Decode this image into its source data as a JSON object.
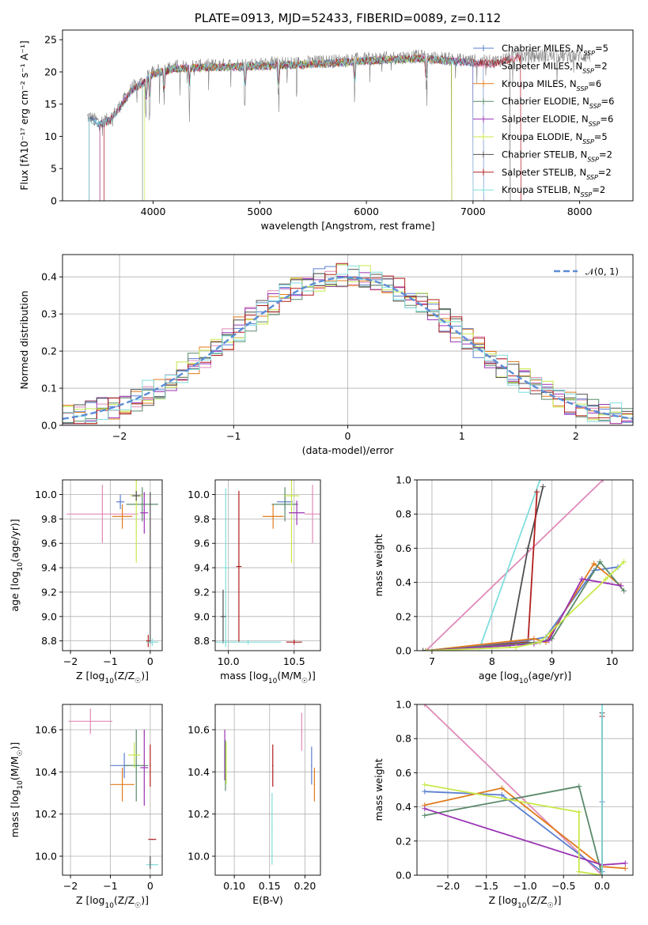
{
  "chart_data": [
    {
      "type": "line",
      "title": "PLATE=0913, MJD=52433, FIBERID=0089, z=0.112",
      "xlabel": "wavelength [Angstrom, rest frame]",
      "ylabel": "Flux [fλ10⁻¹⁷ erg cm⁻² s⁻¹ A⁻¹]",
      "xlim": [
        3150,
        8500
      ],
      "ylim": [
        0,
        26.5
      ],
      "xticks": [
        4000,
        5000,
        6000,
        7000,
        8000
      ],
      "yticks": [
        0,
        5,
        10,
        15,
        20,
        25
      ],
      "xtick_labels": [
        "4000",
        "5000",
        "6000",
        "7000",
        "8000"
      ],
      "ytick_labels": [
        "0",
        "5",
        "10",
        "15",
        "20",
        "25"
      ],
      "legend_position": "right",
      "grid": false,
      "series_name_parts": [
        [
          "Chabrier MILES, N",
          "SSP",
          "=5"
        ],
        [
          "Salpeter MILES, N",
          "SSP",
          "=2"
        ],
        [
          "Kroupa MILES, N",
          "SSP",
          "=6"
        ],
        [
          "Chabrier ELODIE, N",
          "SSP",
          "=6"
        ],
        [
          "Salpeter ELODIE, N",
          "SSP",
          "=6"
        ],
        [
          "Kroupa ELODIE, N",
          "SSP",
          "=5"
        ],
        [
          "Chabrier STELIB, N",
          "SSP",
          "=2"
        ],
        [
          "Salpeter STELIB, N",
          "SSP",
          "=2"
        ],
        [
          "Kroupa STELIB, N",
          "SSP",
          "=2"
        ]
      ],
      "series_colors": [
        "#5a7fd0",
        "#e08ab8",
        "#e07a1a",
        "#5a8a6a",
        "#9a33b5",
        "#c8e84a",
        "#505050",
        "#b21e1e",
        "#7fdede"
      ],
      "continuum_knots": [
        [
          3400,
          13
        ],
        [
          3500,
          12.2
        ],
        [
          3600,
          12.8
        ],
        [
          3700,
          15
        ],
        [
          3800,
          17.5
        ],
        [
          3900,
          18.5
        ],
        [
          4000,
          20
        ],
        [
          4200,
          20.8
        ],
        [
          4500,
          21
        ],
        [
          5000,
          21.2
        ],
        [
          5500,
          21.5
        ],
        [
          6000,
          22
        ],
        [
          6500,
          22.4
        ],
        [
          7000,
          21.7
        ],
        [
          7200,
          21.6
        ],
        [
          7400,
          22.5
        ]
      ],
      "data_spectrum_range": [
        3380,
        8100
      ]
    },
    {
      "type": "bar",
      "xlabel": "(data-model)/error",
      "ylabel": "Normed distribution",
      "xlim": [
        -2.5,
        2.5
      ],
      "ylim": [
        0,
        0.46
      ],
      "xticks": [
        -2,
        -1,
        0,
        1,
        2
      ],
      "yticks": [
        0.0,
        0.1,
        0.2,
        0.3,
        0.4
      ],
      "xtick_labels": [
        "−2",
        "−1",
        "0",
        "1",
        "2"
      ],
      "ytick_labels": [
        "0.0",
        "0.1",
        "0.2",
        "0.3",
        "0.4"
      ],
      "grid": true,
      "legend_position": "top-right",
      "bin_width": 0.1,
      "reference_curve_label": "𝒩(0, 1)",
      "reference_curve": "gaussian mean 0 sigma 1",
      "reference_color": "#5b8dd6",
      "series_colors": [
        "#5a7fd0",
        "#e08ab8",
        "#e07a1a",
        "#5a8a6a",
        "#9a33b5",
        "#c8e84a",
        "#505050",
        "#b21e1e",
        "#7fdede"
      ]
    },
    {
      "type": "scatter",
      "xlabel_parts": [
        "Z [log",
        "10",
        "(Z/Z",
        "☉",
        ")]"
      ],
      "ylabel_parts": [
        "age  [log",
        "10",
        "(age/yr)]"
      ],
      "xlim": [
        -2.2,
        0.3
      ],
      "ylim": [
        8.72,
        10.12
      ],
      "xticks": [
        -2,
        -1,
        0
      ],
      "yticks": [
        8.8,
        9.0,
        9.2,
        9.4,
        9.6,
        9.8,
        10.0
      ],
      "xtick_labels": [
        "−2",
        "−1",
        "0"
      ],
      "ytick_labels": [
        "8.8",
        "9.0",
        "9.2",
        "9.4",
        "9.6",
        "9.8",
        "10.0"
      ],
      "grid": true,
      "points": [
        {
          "color": "#e08ab8",
          "x": -1.2,
          "xerr": 0.9,
          "y": 9.84,
          "yerr": 0.24
        },
        {
          "color": "#5a7fd0",
          "x": -0.75,
          "xerr": 0.1,
          "y": 9.94,
          "yerr": 0.06
        },
        {
          "color": "#e07a1a",
          "x": -0.7,
          "xerr": 0.25,
          "y": 9.82,
          "yerr": 0.1
        },
        {
          "color": "#5a8a6a",
          "x": -0.2,
          "xerr": 0.4,
          "y": 9.92,
          "yerr": 0.14
        },
        {
          "color": "#c8e84a",
          "x": -0.35,
          "xerr": 0.15,
          "y": 9.99,
          "yerr": 0.55
        },
        {
          "color": "#505050",
          "x": -0.35,
          "xerr": 0.1,
          "y": 9.99,
          "yerr": 0.04
        },
        {
          "color": "#9a33b5",
          "x": -0.15,
          "xerr": 0.1,
          "y": 9.85,
          "yerr": 0.17
        },
        {
          "color": "#b21e1e",
          "x": -0.05,
          "xerr": 0.05,
          "y": 8.8,
          "yerr": 0.05
        },
        {
          "color": "#505050",
          "x": 0.0,
          "xerr": 0.02,
          "y": 9.4,
          "yerr": 0.62
        },
        {
          "color": "#7fdede",
          "x": 0.05,
          "xerr": 0.15,
          "y": 8.79,
          "yerr": 0.03
        }
      ]
    },
    {
      "type": "scatter",
      "xlabel_parts": [
        "mass [log",
        "10",
        "(M/M",
        "☉",
        ")]"
      ],
      "xlim": [
        9.9,
        10.7
      ],
      "ylim": [
        8.72,
        10.12
      ],
      "xticks": [
        10.0,
        10.5
      ],
      "yticks": [
        8.8,
        9.0,
        9.2,
        9.4,
        9.6,
        9.8,
        10.0
      ],
      "xtick_labels": [
        "10.0",
        "10.5"
      ],
      "ytick_labels": [
        "8.8",
        "9.0",
        "9.2",
        "9.4",
        "9.6",
        "9.8",
        "10.0"
      ],
      "grid": true,
      "points": [
        {
          "color": "#7fdede",
          "x": 9.98,
          "xerr": 0.02,
          "y": 9.4,
          "yerr": 0.65
        },
        {
          "color": "#505050",
          "x": 9.96,
          "xerr": 0.02,
          "y": 9.0,
          "yerr": 0.22
        },
        {
          "color": "#b21e1e",
          "x": 10.08,
          "xerr": 0.02,
          "y": 9.41,
          "yerr": 0.62
        },
        {
          "color": "#7fdede",
          "x": 10.15,
          "xerr": 0.25,
          "y": 8.79,
          "yerr": 0.02
        },
        {
          "color": "#b21e1e",
          "x": 10.5,
          "xerr": 0.06,
          "y": 8.79,
          "yerr": 0.02
        },
        {
          "color": "#e08ab8",
          "x": 10.64,
          "xerr": 0.06,
          "y": 9.84,
          "yerr": 0.24
        },
        {
          "color": "#5a7fd0",
          "x": 10.43,
          "xerr": 0.06,
          "y": 9.94,
          "yerr": 0.06
        },
        {
          "color": "#e07a1a",
          "x": 10.34,
          "xerr": 0.08,
          "y": 9.82,
          "yerr": 0.1
        },
        {
          "color": "#5a8a6a",
          "x": 10.43,
          "xerr": 0.1,
          "y": 9.92,
          "yerr": 0.14
        },
        {
          "color": "#c8e84a",
          "x": 10.48,
          "xerr": 0.06,
          "y": 9.99,
          "yerr": 0.55
        },
        {
          "color": "#9a33b5",
          "x": 10.52,
          "xerr": 0.06,
          "y": 9.85,
          "yerr": 0.1
        }
      ]
    },
    {
      "type": "line",
      "xlabel_parts": [
        "age  [log",
        "10",
        "(age/yr)]"
      ],
      "ylabel": "mass weight",
      "xlim": [
        6.75,
        10.35
      ],
      "ylim": [
        0,
        1
      ],
      "xticks": [
        7,
        8,
        9,
        10
      ],
      "yticks": [
        0.0,
        0.2,
        0.4,
        0.6,
        0.8,
        1.0
      ],
      "xtick_labels": [
        "7",
        "8",
        "9",
        "10"
      ],
      "ytick_labels": [
        "0.0",
        "0.2",
        "0.4",
        "0.6",
        "0.8",
        "1.0"
      ],
      "grid": true,
      "series": [
        {
          "color": "#e08ab8",
          "x": [
            6.9,
            9.85
          ],
          "y": [
            0.0,
            1.0
          ]
        },
        {
          "color": "#7fdede",
          "x": [
            6.85,
            7.8,
            8.8
          ],
          "y": [
            0.0,
            0.02,
            1.0
          ]
        },
        {
          "color": "#505050",
          "x": [
            6.85,
            8.3,
            8.6,
            8.85
          ],
          "y": [
            0.0,
            0.03,
            0.6,
            0.96
          ]
        },
        {
          "color": "#b21e1e",
          "x": [
            6.9,
            8.6,
            8.75
          ],
          "y": [
            0.0,
            0.05,
            0.93
          ]
        },
        {
          "color": "#5a7fd0",
          "x": [
            6.9,
            8.6,
            8.9,
            9.7,
            10.1
          ],
          "y": [
            0.0,
            0.06,
            0.08,
            0.47,
            0.49
          ]
        },
        {
          "color": "#e07a1a",
          "x": [
            6.9,
            8.7,
            8.9,
            9.7,
            10.15
          ],
          "y": [
            0.0,
            0.07,
            0.05,
            0.51,
            0.38
          ]
        },
        {
          "color": "#5a8a6a",
          "x": [
            6.9,
            8.8,
            9.0,
            9.8,
            10.2
          ],
          "y": [
            0.0,
            0.05,
            0.07,
            0.52,
            0.35
          ]
        },
        {
          "color": "#9a33b5",
          "x": [
            6.9,
            8.7,
            8.95,
            9.5,
            10.15
          ],
          "y": [
            0.0,
            0.04,
            0.06,
            0.42,
            0.38
          ]
        },
        {
          "color": "#c8e84a",
          "x": [
            6.9,
            8.4,
            8.8,
            9.9,
            10.2
          ],
          "y": [
            0.0,
            0.02,
            0.05,
            0.42,
            0.52
          ]
        }
      ]
    },
    {
      "type": "scatter",
      "xlabel_parts": [
        "Z [log",
        "10",
        "(Z/Z",
        "☉",
        ")]"
      ],
      "ylabel_parts": [
        "mass [log",
        "10",
        "(M/M",
        "☉",
        ")]"
      ],
      "xlim": [
        -2.2,
        0.3
      ],
      "ylim": [
        9.91,
        10.72
      ],
      "xticks": [
        -2,
        -1,
        0
      ],
      "yticks": [
        10.0,
        10.2,
        10.4,
        10.6
      ],
      "xtick_labels": [
        "−2",
        "−1",
        "0"
      ],
      "ytick_labels": [
        "10.0",
        "10.2",
        "10.4",
        "10.6"
      ],
      "grid": true,
      "points": [
        {
          "color": "#e08ab8",
          "x": -1.5,
          "xerr": 0.55,
          "y": 10.64,
          "yerr": 0.06
        },
        {
          "color": "#5a7fd0",
          "x": -0.65,
          "xerr": 0.35,
          "y": 10.43,
          "yerr": 0.06
        },
        {
          "color": "#e07a1a",
          "x": -0.7,
          "xerr": 0.3,
          "y": 10.34,
          "yerr": 0.08
        },
        {
          "color": "#5a8a6a",
          "x": -0.35,
          "xerr": 0.3,
          "y": 10.43,
          "yerr": 0.17
        },
        {
          "color": "#c8e84a",
          "x": -0.4,
          "xerr": 0.15,
          "y": 10.48,
          "yerr": 0.06
        },
        {
          "color": "#9a33b5",
          "x": -0.15,
          "xerr": 0.1,
          "y": 10.42,
          "yerr": 0.18
        },
        {
          "color": "#b21e1e",
          "x": 0.05,
          "xerr": 0.1,
          "y": 10.08,
          "yerr": 0.0
        },
        {
          "color": "#b21e1e",
          "x": 0.0,
          "xerr": 0.0,
          "y": 10.43,
          "yerr": 0.1
        },
        {
          "color": "#7fdede",
          "x": 0.05,
          "xerr": 0.15,
          "y": 9.96,
          "yerr": 0.0
        },
        {
          "color": "#505050",
          "x": 0.0,
          "xerr": 0.0,
          "y": 9.97,
          "yerr": 0.03
        }
      ]
    },
    {
      "type": "scatter",
      "xlabel": "E(B-V)",
      "xlim": [
        0.073,
        0.222
      ],
      "ylim": [
        9.91,
        10.72
      ],
      "xticks": [
        0.1,
        0.15,
        0.2
      ],
      "yticks": [
        10.0,
        10.2,
        10.4,
        10.6
      ],
      "xtick_labels": [
        "0.10",
        "0.15",
        "0.20"
      ],
      "ytick_labels": [
        "10.0",
        "10.2",
        "10.4",
        "10.6"
      ],
      "grid": true,
      "points": [
        {
          "color": "#9a33b5",
          "x": 0.0865,
          "y": 10.48,
          "yerr": 0.12
        },
        {
          "color": "#5a8a6a",
          "x": 0.0875,
          "y": 10.43,
          "yerr": 0.12
        },
        {
          "color": "#c8e84a",
          "x": 0.0885,
          "y": 10.44,
          "yerr": 0.1
        },
        {
          "color": "#b21e1e",
          "x": 0.1545,
          "y": 10.43,
          "yerr": 0.1
        },
        {
          "color": "#7fdede",
          "x": 0.1535,
          "y": 10.13,
          "yerr": 0.17
        },
        {
          "color": "#e08ab8",
          "x": 0.1955,
          "y": 10.59,
          "yerr": 0.09
        },
        {
          "color": "#5a7fd0",
          "x": 0.2095,
          "y": 10.43,
          "yerr": 0.09
        },
        {
          "color": "#e07a1a",
          "x": 0.2135,
          "y": 10.34,
          "yerr": 0.08
        }
      ]
    },
    {
      "type": "line",
      "xlabel_parts": [
        "Z [log",
        "10",
        "(Z/Z",
        "☉",
        ")]"
      ],
      "ylabel": "mass weight",
      "xlim": [
        -2.4,
        0.4
      ],
      "ylim": [
        0,
        1
      ],
      "xticks": [
        -2.0,
        -1.5,
        -1.0,
        -0.5,
        0.0
      ],
      "yticks": [
        0.0,
        0.2,
        0.4,
        0.6,
        0.8,
        1.0
      ],
      "xtick_labels": [
        "−2.0",
        "−1.5",
        "−1.0",
        "−0.5",
        "0.0"
      ],
      "ytick_labels": [
        "0.0",
        "0.2",
        "0.4",
        "0.6",
        "0.8",
        "1.0"
      ],
      "grid": true,
      "series": [
        {
          "color": "#e08ab8",
          "x": [
            -2.3,
            0.0
          ],
          "y": [
            1.0,
            0.0
          ]
        },
        {
          "color": "#5a7fd0",
          "x": [
            -2.3,
            -1.3,
            0.0,
            0.0
          ],
          "y": [
            0.49,
            0.47,
            0.02,
            0.43
          ]
        },
        {
          "color": "#e07a1a",
          "x": [
            -2.3,
            -1.3,
            0.0,
            0.3
          ],
          "y": [
            0.41,
            0.51,
            0.05,
            0.04
          ]
        },
        {
          "color": "#5a8a6a",
          "x": [
            -2.3,
            -0.3,
            0.0
          ],
          "y": [
            0.35,
            0.52,
            0.0
          ]
        },
        {
          "color": "#9a33b5",
          "x": [
            -2.3,
            0.0,
            0.3
          ],
          "y": [
            0.39,
            0.06,
            0.07
          ]
        },
        {
          "color": "#c8e84a",
          "x": [
            -2.3,
            -0.3,
            -0.3,
            0.0
          ],
          "y": [
            0.53,
            0.37,
            0.02,
            0.0
          ]
        },
        {
          "color": "#505050",
          "x": [
            0.0,
            0.0
          ],
          "y": [
            0.0,
            0.95
          ]
        },
        {
          "color": "#b21e1e",
          "x": [
            0.0,
            0.0
          ],
          "y": [
            0.0,
            0.93
          ]
        },
        {
          "color": "#7fdede",
          "x": [
            0.0,
            0.0
          ],
          "y": [
            0.0,
            1.0
          ]
        }
      ]
    }
  ]
}
